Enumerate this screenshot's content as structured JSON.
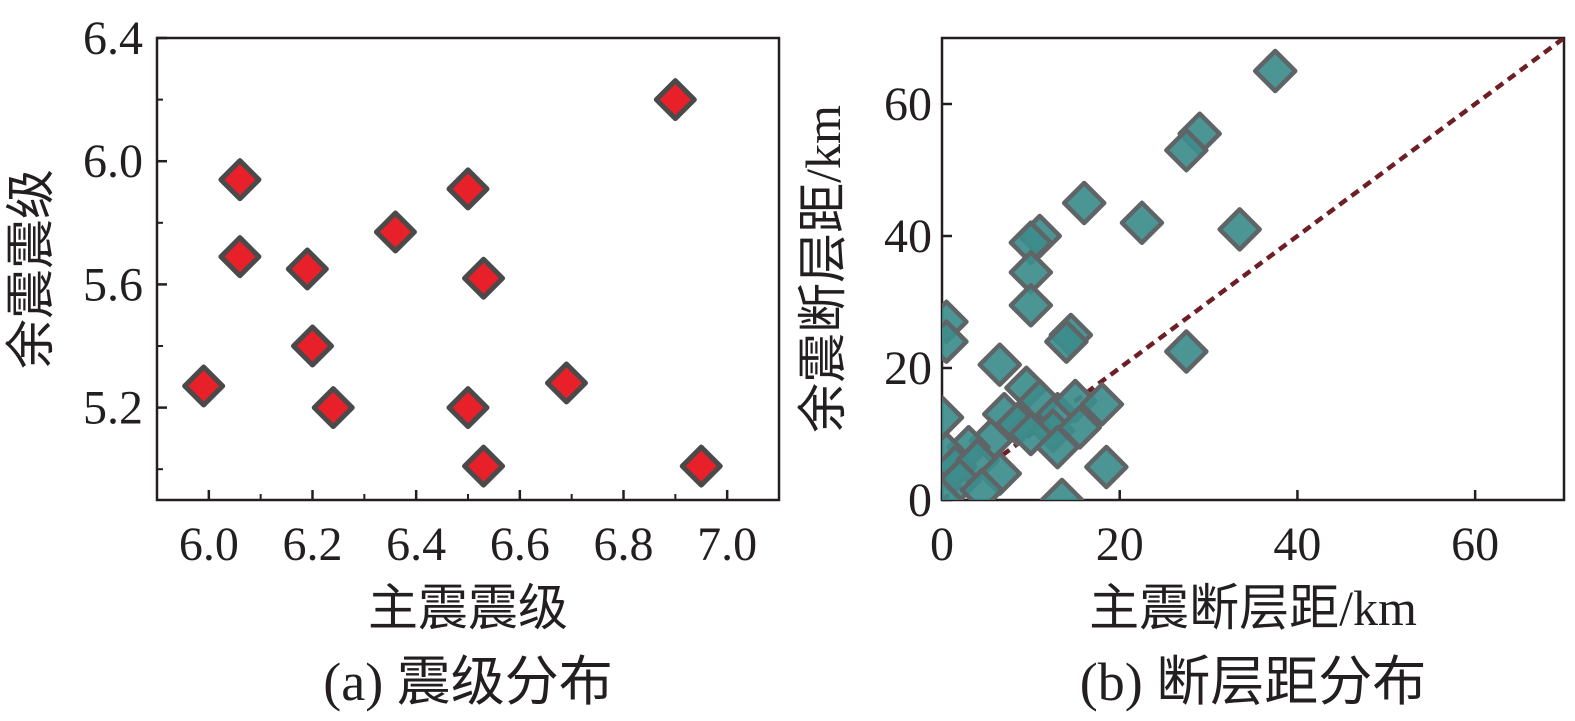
{
  "chart_data": [
    {
      "type": "scatter",
      "caption": "(a) 震级分布",
      "xlabel": "主震震级",
      "ylabel": "余震震级",
      "xlim": [
        5.9,
        7.1
      ],
      "ylim": [
        4.9,
        6.4
      ],
      "xticks": [
        6.0,
        6.2,
        6.4,
        6.6,
        6.8,
        7.0
      ],
      "xtick_labels": [
        "6.0",
        "6.2",
        "6.4",
        "6.6",
        "6.8",
        "7.0"
      ],
      "yticks": [
        5.2,
        5.6,
        6.0,
        6.4
      ],
      "ytick_labels": [
        "5.2",
        "5.6",
        "6.0",
        "6.4"
      ],
      "marker": "diamond",
      "marker_fill": "#e8202a",
      "marker_edge": "#4a4a4a",
      "grid": false,
      "points": [
        {
          "x": 6.06,
          "y": 5.94
        },
        {
          "x": 6.06,
          "y": 5.69
        },
        {
          "x": 6.19,
          "y": 5.65
        },
        {
          "x": 6.2,
          "y": 5.4
        },
        {
          "x": 5.99,
          "y": 5.27
        },
        {
          "x": 6.24,
          "y": 5.2
        },
        {
          "x": 6.36,
          "y": 5.77
        },
        {
          "x": 6.5,
          "y": 5.91
        },
        {
          "x": 6.53,
          "y": 5.62
        },
        {
          "x": 6.5,
          "y": 5.2
        },
        {
          "x": 6.53,
          "y": 5.01
        },
        {
          "x": 6.69,
          "y": 5.28
        },
        {
          "x": 6.9,
          "y": 6.2
        },
        {
          "x": 6.95,
          "y": 5.01
        }
      ]
    },
    {
      "type": "scatter",
      "caption": "(b) 断层距分布",
      "xlabel": "主震断层距/km",
      "ylabel": "余震断层距/km",
      "xlim": [
        0,
        70
      ],
      "ylim": [
        0,
        70
      ],
      "xticks": [
        0,
        20,
        40,
        60
      ],
      "xtick_labels": [
        "0",
        "20",
        "40",
        "60"
      ],
      "yticks": [
        0,
        20,
        40,
        60
      ],
      "ytick_labels": [
        "0",
        "20",
        "40",
        "60"
      ],
      "marker": "diamond",
      "marker_fill": "#3d8c8c",
      "marker_edge": "#5f6566",
      "reference_line": {
        "style": "dashed",
        "color": "#6e1f26",
        "from": [
          0,
          0
        ],
        "to": [
          70,
          70
        ]
      },
      "grid": false,
      "points": [
        {
          "x": 37.5,
          "y": 65
        },
        {
          "x": 29,
          "y": 55.5
        },
        {
          "x": 27.5,
          "y": 53
        },
        {
          "x": 16,
          "y": 45
        },
        {
          "x": 22.5,
          "y": 42
        },
        {
          "x": 33.5,
          "y": 41
        },
        {
          "x": 11,
          "y": 40
        },
        {
          "x": 10,
          "y": 39
        },
        {
          "x": 10,
          "y": 34.5
        },
        {
          "x": 10,
          "y": 29.5
        },
        {
          "x": 0.5,
          "y": 27
        },
        {
          "x": 0.5,
          "y": 24
        },
        {
          "x": 14.5,
          "y": 25
        },
        {
          "x": 14,
          "y": 24
        },
        {
          "x": 27.5,
          "y": 22.5
        },
        {
          "x": 6.5,
          "y": 20.5
        },
        {
          "x": 9.5,
          "y": 17
        },
        {
          "x": 11,
          "y": 15
        },
        {
          "x": 13,
          "y": 13
        },
        {
          "x": 15,
          "y": 15
        },
        {
          "x": 18,
          "y": 14.5
        },
        {
          "x": 7,
          "y": 13
        },
        {
          "x": 0,
          "y": 12.5
        },
        {
          "x": 12.5,
          "y": 10.5
        },
        {
          "x": 8.5,
          "y": 11.5
        },
        {
          "x": 15.5,
          "y": 11
        },
        {
          "x": 10,
          "y": 10
        },
        {
          "x": 13,
          "y": 8
        },
        {
          "x": 5.5,
          "y": 9
        },
        {
          "x": 3,
          "y": 8
        },
        {
          "x": 0.5,
          "y": 7
        },
        {
          "x": 1.5,
          "y": 5
        },
        {
          "x": 4,
          "y": 6
        },
        {
          "x": 6.5,
          "y": 4
        },
        {
          "x": 2,
          "y": 3
        },
        {
          "x": 4.5,
          "y": 1.5
        },
        {
          "x": 18.5,
          "y": 5
        },
        {
          "x": 13.5,
          "y": 0
        },
        {
          "x": 0,
          "y": 0
        }
      ]
    }
  ]
}
